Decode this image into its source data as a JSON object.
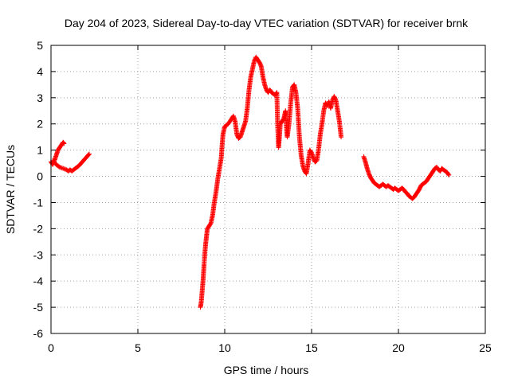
{
  "chart_data": {
    "type": "scatter",
    "title": "Day 204 of 2023, Sidereal Day-to-day VTEC variation (SDTVAR) for receiver brnk",
    "xlabel": "GPS time / hours",
    "ylabel": "SDTVAR / TECUs",
    "xlim": [
      0,
      25
    ],
    "ylim": [
      -6,
      5
    ],
    "xticks": [
      "0",
      "5",
      "10",
      "15",
      "20",
      "25"
    ],
    "yticks": [
      "-6",
      "-5",
      "-4",
      "-3",
      "-2",
      "-1",
      "0",
      "1",
      "2",
      "3",
      "4",
      "5"
    ],
    "grid": true,
    "marker": "+",
    "series": [
      {
        "name": "brnk",
        "color": "#ff0000",
        "segments": [
          [
            [
              0.0,
              0.55
            ],
            [
              0.1,
              0.45
            ],
            [
              0.2,
              0.6
            ],
            [
              0.3,
              0.8
            ],
            [
              0.4,
              1.0
            ],
            [
              0.5,
              1.1
            ],
            [
              0.6,
              1.2
            ],
            [
              0.7,
              1.3
            ],
            [
              0.75,
              1.25
            ]
          ],
          [
            [
              0.1,
              0.6
            ],
            [
              0.3,
              0.45
            ],
            [
              0.5,
              0.35
            ],
            [
              0.7,
              0.3
            ],
            [
              0.9,
              0.25
            ],
            [
              1.0,
              0.2
            ],
            [
              1.1,
              0.25
            ],
            [
              1.2,
              0.2
            ],
            [
              1.3,
              0.25
            ],
            [
              1.4,
              0.3
            ],
            [
              1.6,
              0.4
            ],
            [
              1.8,
              0.55
            ],
            [
              2.0,
              0.7
            ],
            [
              2.2,
              0.85
            ]
          ],
          [
            [
              8.6,
              -5.0
            ],
            [
              8.65,
              -4.8
            ],
            [
              8.7,
              -4.4
            ],
            [
              8.75,
              -4.0
            ],
            [
              8.8,
              -3.5
            ],
            [
              8.85,
              -3.0
            ],
            [
              8.9,
              -2.6
            ],
            [
              8.95,
              -2.3
            ],
            [
              9.0,
              -2.0
            ],
            [
              9.1,
              -1.9
            ],
            [
              9.2,
              -1.8
            ],
            [
              9.3,
              -1.5
            ],
            [
              9.4,
              -1.0
            ],
            [
              9.5,
              -0.6
            ],
            [
              9.6,
              -0.1
            ],
            [
              9.7,
              0.3
            ],
            [
              9.8,
              0.7
            ],
            [
              9.85,
              1.2
            ],
            [
              9.9,
              1.6
            ],
            [
              10.0,
              1.9
            ],
            [
              10.2,
              2.0
            ],
            [
              10.4,
              2.2
            ],
            [
              10.5,
              2.3
            ],
            [
              10.6,
              2.1
            ],
            [
              10.7,
              1.6
            ],
            [
              10.8,
              1.45
            ],
            [
              10.9,
              1.5
            ],
            [
              11.0,
              1.7
            ],
            [
              11.1,
              1.9
            ],
            [
              11.2,
              2.1
            ],
            [
              11.3,
              2.6
            ],
            [
              11.4,
              3.3
            ],
            [
              11.5,
              3.8
            ],
            [
              11.6,
              4.1
            ],
            [
              11.7,
              4.4
            ],
            [
              11.8,
              4.55
            ],
            [
              11.9,
              4.45
            ],
            [
              12.0,
              4.35
            ],
            [
              12.1,
              4.2
            ],
            [
              12.2,
              3.8
            ],
            [
              12.3,
              3.5
            ],
            [
              12.4,
              3.3
            ],
            [
              12.5,
              3.2
            ],
            [
              12.6,
              3.3
            ],
            [
              12.7,
              3.2
            ],
            [
              12.8,
              3.15
            ],
            [
              12.9,
              3.1
            ],
            [
              13.0,
              3.2
            ],
            [
              13.05,
              1.9
            ],
            [
              13.1,
              1.1
            ],
            [
              13.15,
              1.5
            ],
            [
              13.2,
              2.0
            ],
            [
              13.3,
              2.1
            ],
            [
              13.4,
              2.2
            ],
            [
              13.5,
              2.5
            ],
            [
              13.55,
              1.9
            ],
            [
              13.6,
              1.5
            ],
            [
              13.7,
              2.0
            ],
            [
              13.8,
              2.8
            ],
            [
              13.9,
              3.4
            ],
            [
              14.0,
              3.5
            ],
            [
              14.1,
              3.2
            ],
            [
              14.2,
              2.6
            ],
            [
              14.3,
              1.5
            ],
            [
              14.4,
              0.8
            ],
            [
              14.5,
              0.4
            ],
            [
              14.6,
              0.2
            ],
            [
              14.7,
              0.1
            ],
            [
              14.8,
              0.5
            ],
            [
              14.9,
              1.0
            ],
            [
              15.0,
              0.9
            ],
            [
              15.1,
              0.7
            ],
            [
              15.2,
              0.55
            ],
            [
              15.3,
              0.6
            ],
            [
              15.4,
              1.0
            ],
            [
              15.5,
              1.6
            ],
            [
              15.6,
              2.0
            ],
            [
              15.7,
              2.5
            ],
            [
              15.8,
              2.8
            ],
            [
              15.9,
              2.7
            ],
            [
              16.0,
              2.85
            ],
            [
              16.1,
              2.6
            ],
            [
              16.2,
              2.9
            ],
            [
              16.3,
              3.05
            ],
            [
              16.4,
              2.9
            ],
            [
              16.5,
              2.5
            ],
            [
              16.6,
              2.1
            ],
            [
              16.7,
              1.5
            ]
          ],
          [
            [
              18.0,
              0.75
            ],
            [
              18.1,
              0.55
            ],
            [
              18.2,
              0.3
            ],
            [
              18.3,
              0.1
            ],
            [
              18.4,
              -0.05
            ],
            [
              18.5,
              -0.15
            ],
            [
              18.6,
              -0.25
            ],
            [
              18.7,
              -0.3
            ],
            [
              18.8,
              -0.35
            ],
            [
              18.9,
              -0.4
            ],
            [
              19.0,
              -0.35
            ],
            [
              19.1,
              -0.3
            ],
            [
              19.2,
              -0.35
            ],
            [
              19.3,
              -0.4
            ],
            [
              19.4,
              -0.35
            ],
            [
              19.5,
              -0.4
            ],
            [
              19.6,
              -0.45
            ],
            [
              19.7,
              -0.5
            ],
            [
              19.8,
              -0.45
            ],
            [
              19.9,
              -0.5
            ],
            [
              20.0,
              -0.55
            ],
            [
              20.1,
              -0.5
            ],
            [
              20.2,
              -0.45
            ],
            [
              20.3,
              -0.5
            ],
            [
              20.4,
              -0.6
            ],
            [
              20.5,
              -0.65
            ],
            [
              20.6,
              -0.75
            ],
            [
              20.7,
              -0.8
            ],
            [
              20.8,
              -0.85
            ],
            [
              20.9,
              -0.8
            ],
            [
              21.0,
              -0.7
            ],
            [
              21.1,
              -0.6
            ],
            [
              21.2,
              -0.5
            ],
            [
              21.3,
              -0.35
            ],
            [
              21.4,
              -0.3
            ],
            [
              21.5,
              -0.25
            ],
            [
              21.6,
              -0.2
            ],
            [
              21.7,
              -0.1
            ],
            [
              21.8,
              0.0
            ],
            [
              21.9,
              0.1
            ],
            [
              22.0,
              0.2
            ],
            [
              22.1,
              0.3
            ],
            [
              22.2,
              0.35
            ],
            [
              22.3,
              0.25
            ],
            [
              22.4,
              0.2
            ],
            [
              22.5,
              0.3
            ],
            [
              22.6,
              0.25
            ],
            [
              22.7,
              0.2
            ],
            [
              22.8,
              0.15
            ],
            [
              22.9,
              0.05
            ]
          ]
        ]
      }
    ]
  }
}
